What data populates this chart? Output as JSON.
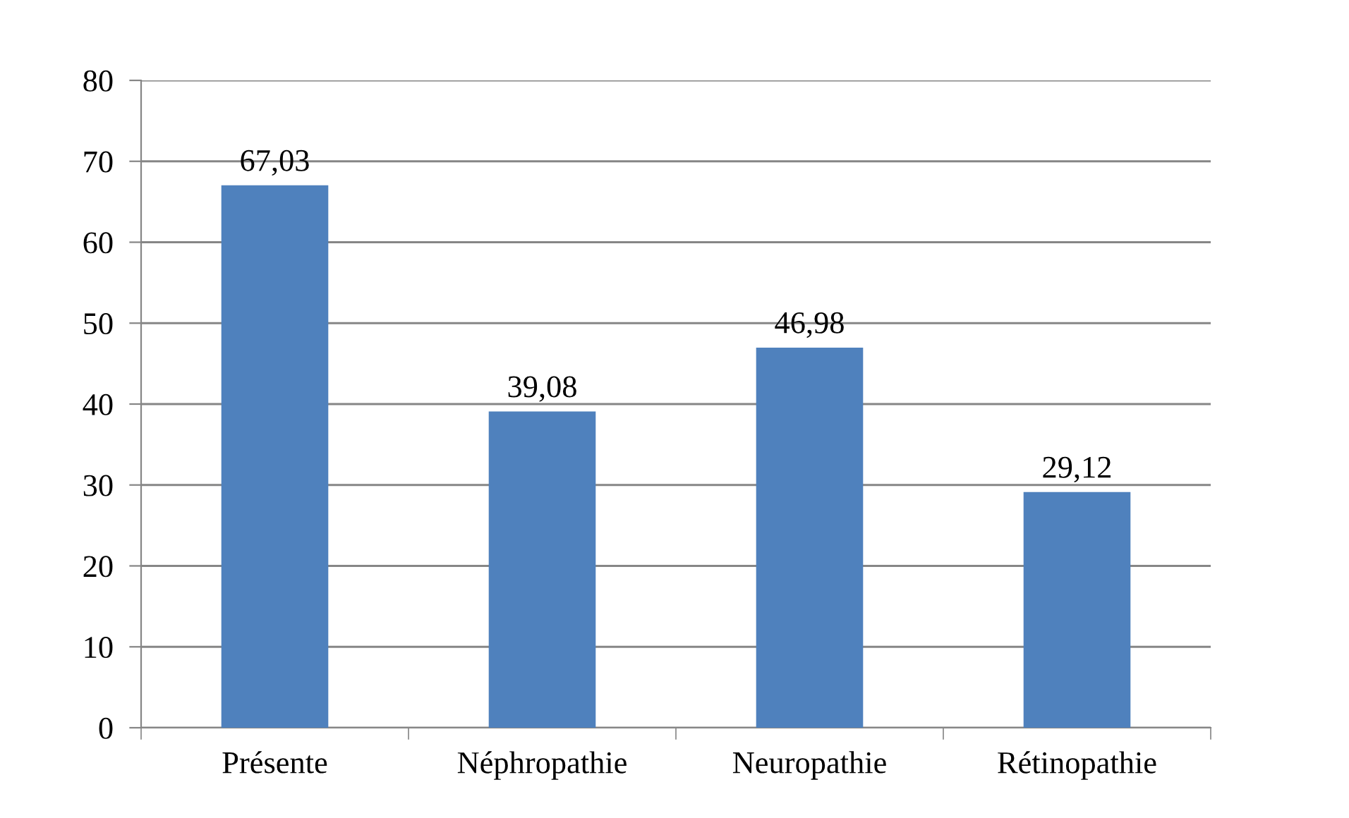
{
  "chart_data": {
    "type": "bar",
    "categories": [
      "Présente",
      "Néphropathie",
      "Neuropathie",
      "Rétinopathie"
    ],
    "values": [
      67.03,
      39.08,
      46.98,
      29.12
    ],
    "value_labels": [
      "67,03",
      "39,08",
      "46,98",
      "29,12"
    ],
    "color": "#4f81bd",
    "ylim": [
      0,
      80
    ],
    "yticks": [
      0,
      10,
      20,
      30,
      40,
      50,
      60,
      70,
      80
    ],
    "grid": "y"
  }
}
